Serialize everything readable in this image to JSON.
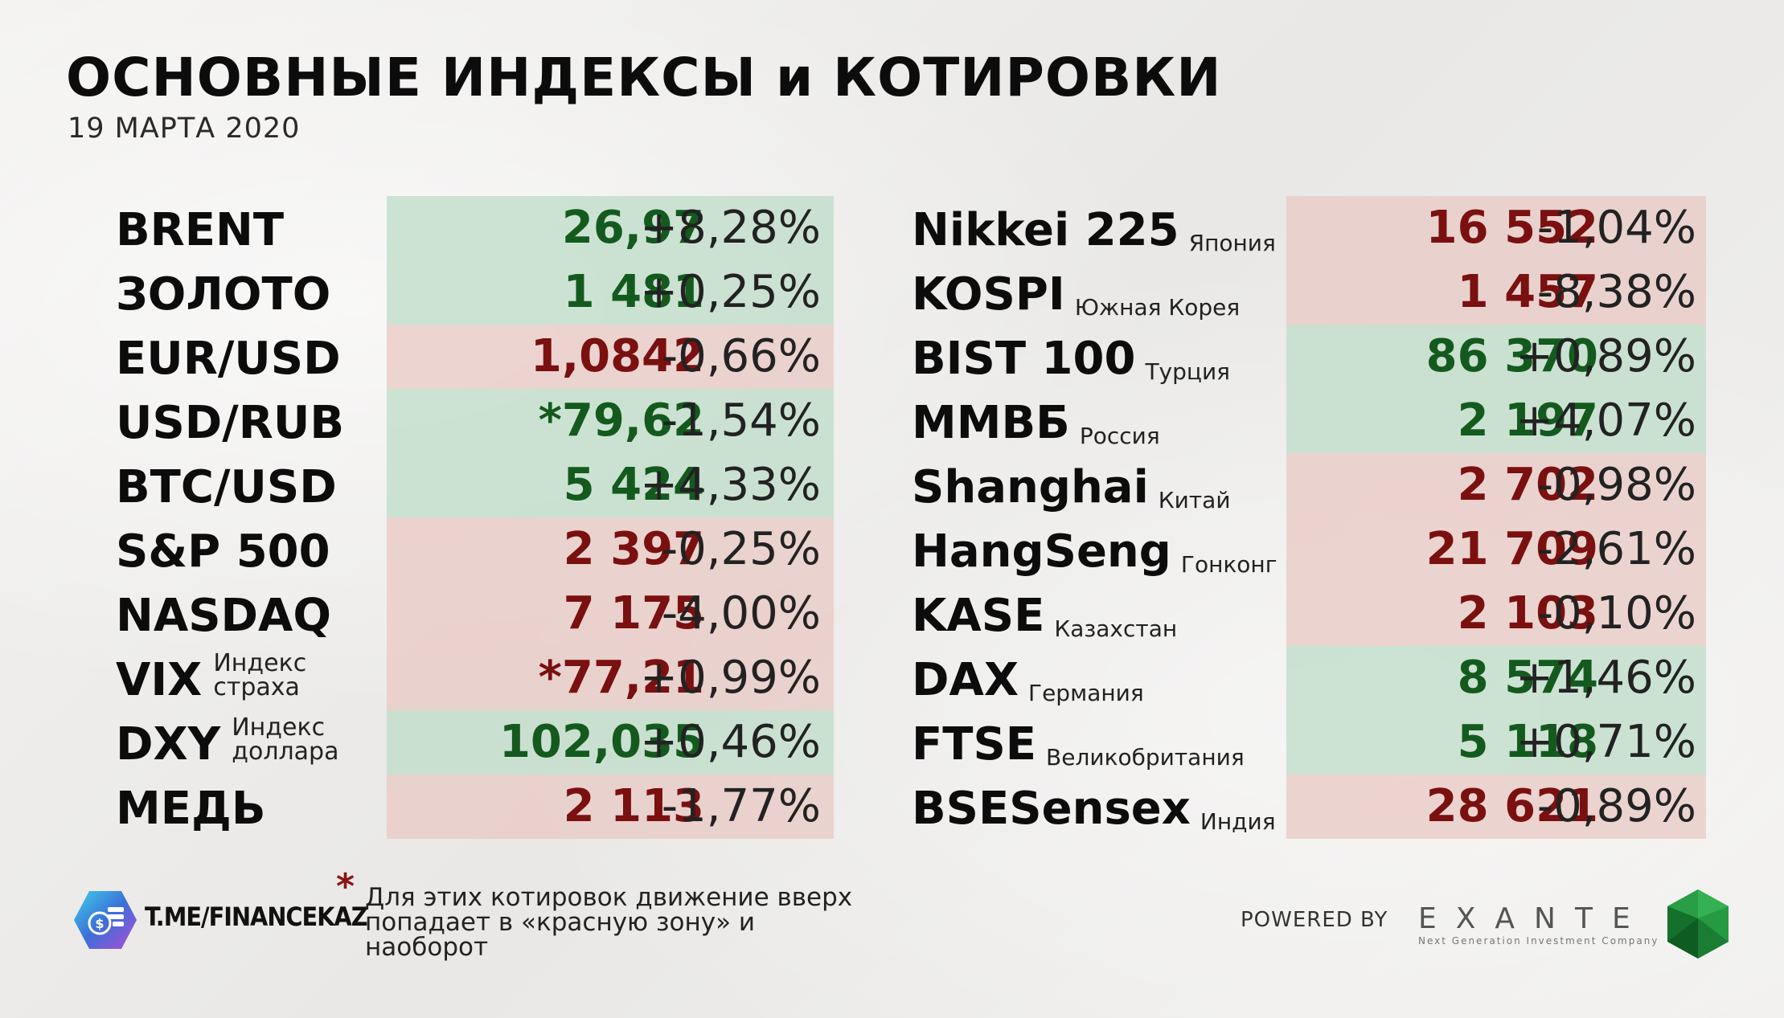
{
  "header": {
    "title": "ОСНОВНЫЕ ИНДЕКСЫ и КОТИРОВКИ",
    "date": "19 МАРТА 2020"
  },
  "left_table": [
    {
      "name": "BRENT",
      "sub": "",
      "value": "26,97",
      "change": "+8,28%",
      "trend": "up"
    },
    {
      "name": "ЗОЛОТО",
      "sub": "",
      "value": "1 481",
      "change": "+0,25%",
      "trend": "up"
    },
    {
      "name": "EUR/USD",
      "sub": "",
      "value": "1,0842",
      "change": "-0,66%",
      "trend": "down"
    },
    {
      "name": "USD/RUB",
      "sub": "",
      "value": "*79,62",
      "change": "-1,54%",
      "trend": "up"
    },
    {
      "name": "BTC/USD",
      "sub": "",
      "value": "5 424",
      "change": "+4,33%",
      "trend": "up"
    },
    {
      "name": "S&P 500",
      "sub": "",
      "value": "2 397",
      "change": "-0,25%",
      "trend": "down"
    },
    {
      "name": "NASDAQ",
      "sub": "",
      "value": "7 175",
      "change": "-4,00%",
      "trend": "down"
    },
    {
      "name": "VIX",
      "sub_line1": "Индекс",
      "sub_line2": "страха",
      "value": "*77,21",
      "change": "+0,99%",
      "trend": "down"
    },
    {
      "name": "DXY",
      "sub_line1": "Индекс",
      "sub_line2": "доллара",
      "value": "102,035",
      "change": "+0,46%",
      "trend": "up"
    },
    {
      "name": "МЕДЬ",
      "sub": "",
      "value": "2 113",
      "change": "-1,77%",
      "trend": "down"
    }
  ],
  "right_table": [
    {
      "name": "Nikkei 225",
      "sub": "Япония",
      "value": "16 552",
      "change": "-1,04%",
      "trend": "down"
    },
    {
      "name": "KOSPI",
      "sub": "Южная Корея",
      "value": "1 457",
      "change": "-8,38%",
      "trend": "down"
    },
    {
      "name": "BIST 100",
      "sub": "Турция",
      "value": "86 370",
      "change": "+0,89%",
      "trend": "up"
    },
    {
      "name": "ММВБ",
      "sub": "Россия",
      "value": "2 197",
      "change": "+4,07%",
      "trend": "up"
    },
    {
      "name": "Shanghai",
      "sub": "Китай",
      "value": "2 702",
      "change": "-0,98%",
      "trend": "down"
    },
    {
      "name": "HangSeng",
      "sub": "Гонконг",
      "value": "21 709",
      "change": "-2,61%",
      "trend": "down"
    },
    {
      "name": "KASE",
      "sub": "Казахстан",
      "value": "2 103",
      "change": "-0,10%",
      "trend": "down"
    },
    {
      "name": "DAX",
      "sub": "Германия",
      "value": "8 574",
      "change": "+1,46%",
      "trend": "up"
    },
    {
      "name": "FTSE",
      "sub": "Великобритания",
      "value": "5 118",
      "change": "+0,71%",
      "trend": "up"
    },
    {
      "name": "BSESensex",
      "sub": "Индия",
      "value": "28 621",
      "change": "-0,89%",
      "trend": "down"
    }
  ],
  "footer": {
    "channel": "T.ME/FINANCEKAZ",
    "note_star": "*",
    "note": "Для этих котировок движение вверх попадает в «красную зону» и наоборот",
    "powered_by": "POWERED BY",
    "brand": "EXANTE",
    "brand_tagline": "Next Generation Investment Company"
  },
  "colors": {
    "up_bg": "#bedcc8",
    "down_bg": "#e8c8c4",
    "up_text": "#145a1e",
    "down_text": "#7a1010",
    "star": "#8b1414"
  }
}
